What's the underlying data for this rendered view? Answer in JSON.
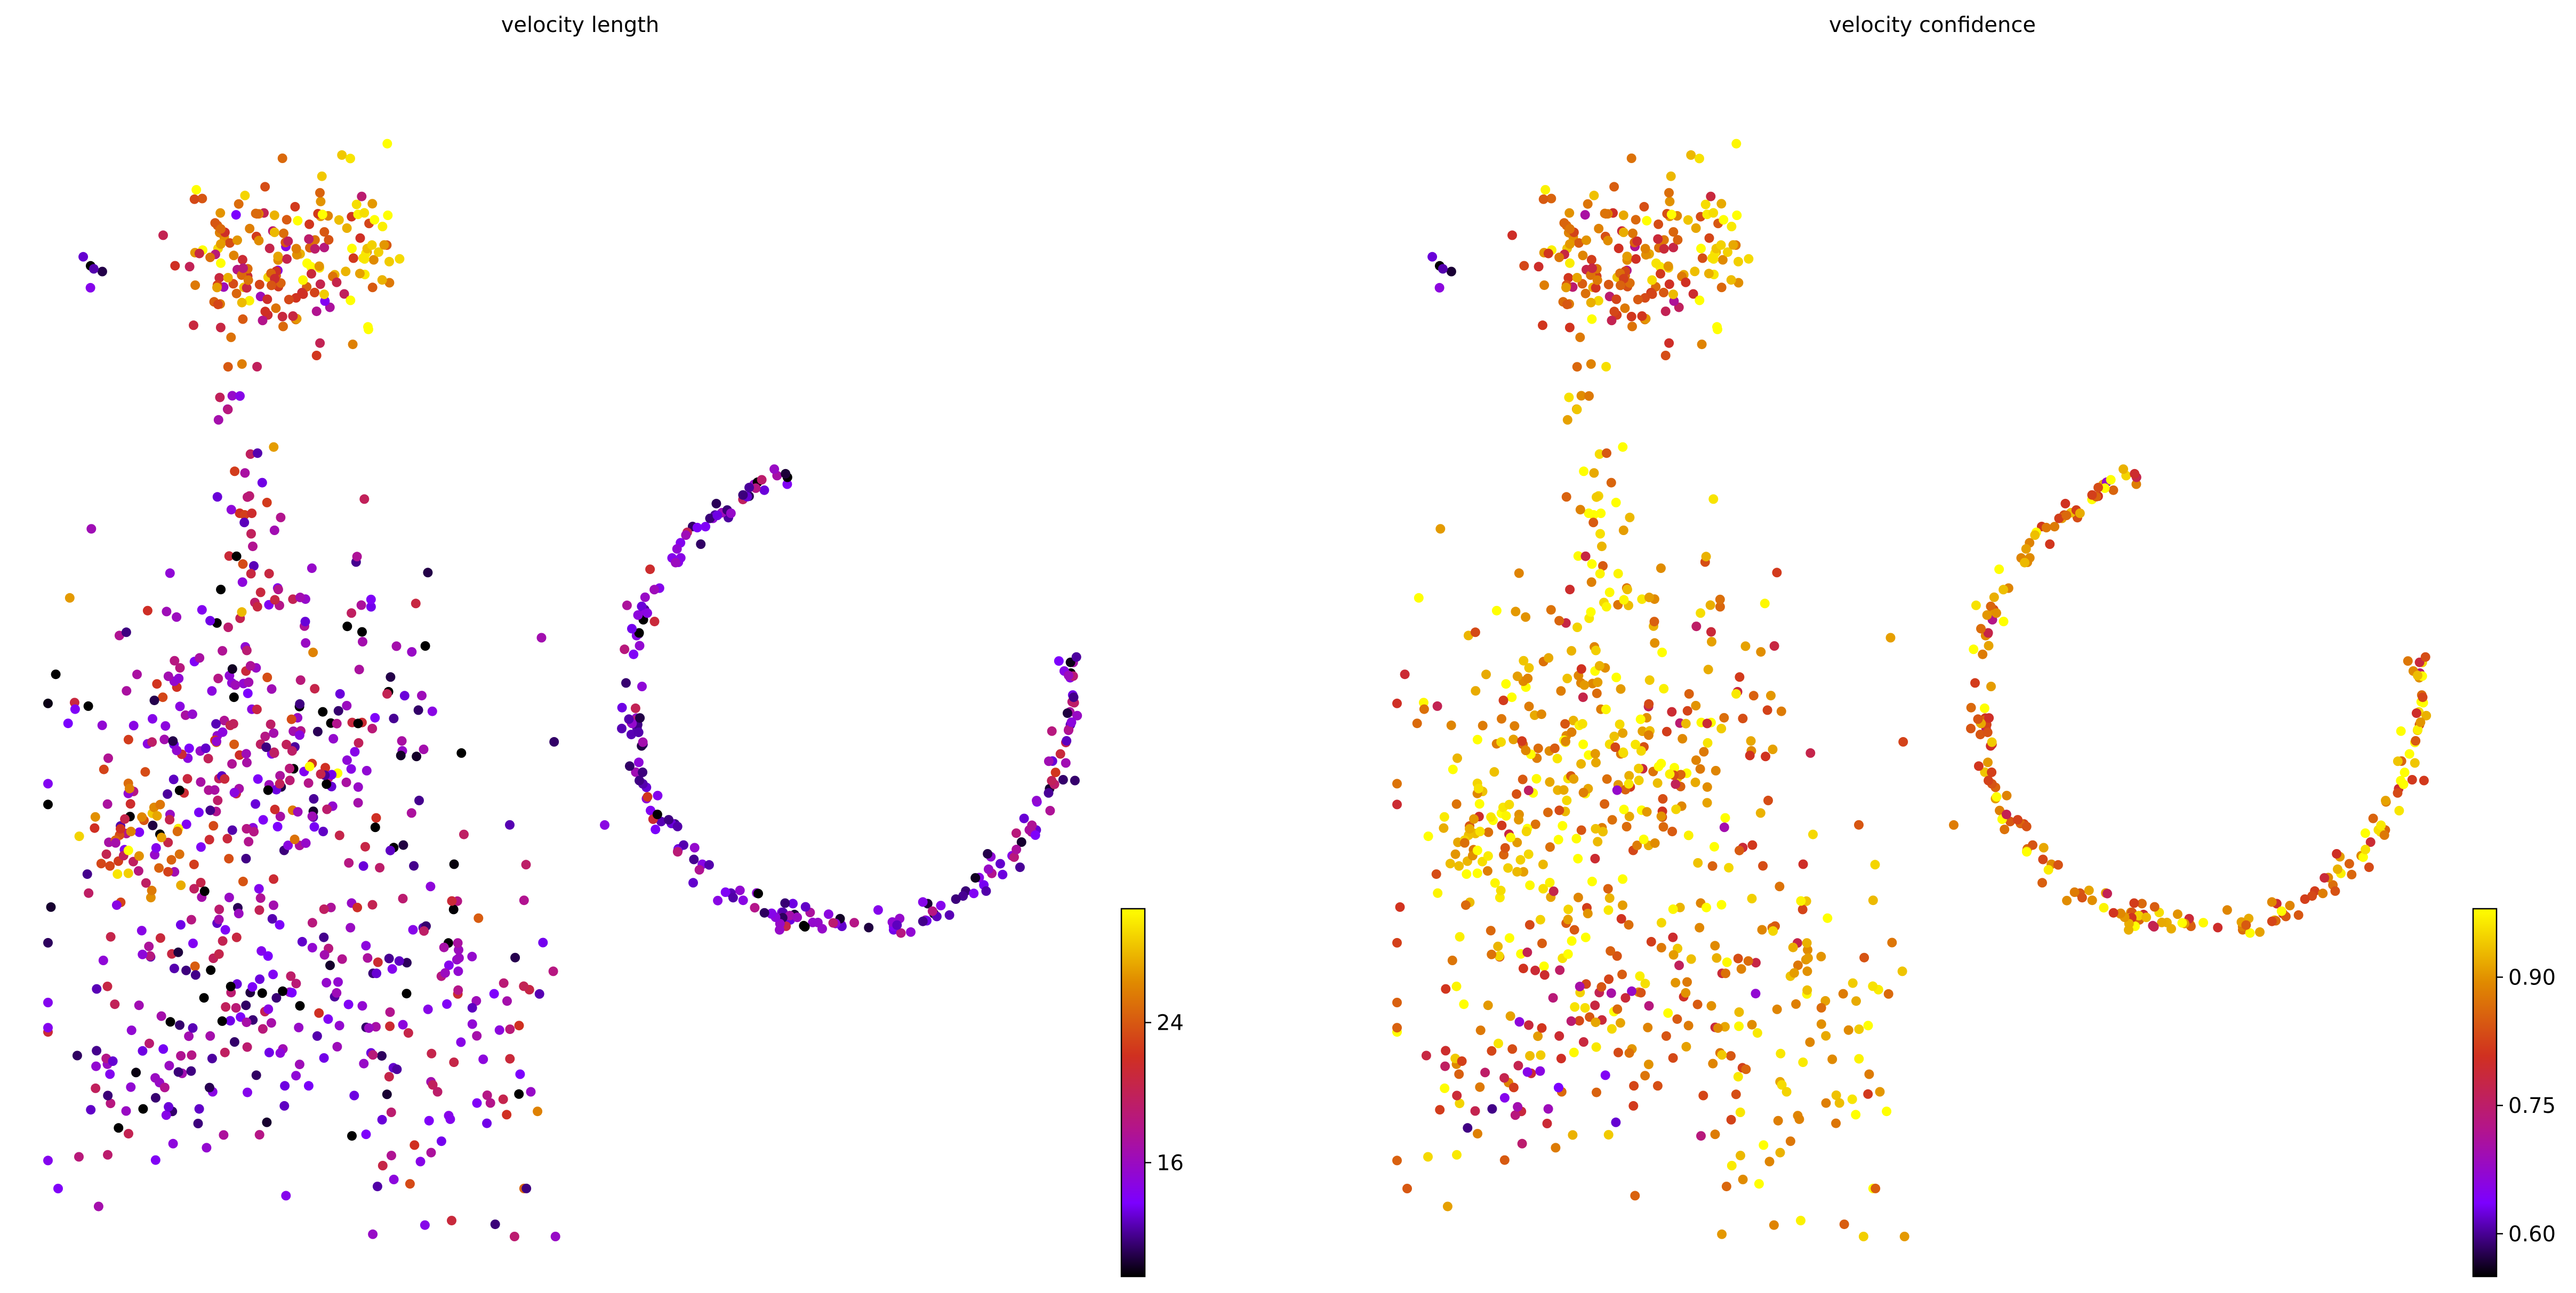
{
  "chart_data": [
    {
      "type": "scatter",
      "title": "velocity length",
      "xlabel": "",
      "ylabel": "",
      "grid": false,
      "axes_visible": false,
      "colormap": "gnuplot",
      "colormap_stops": [
        "#000000",
        "#7c00ff",
        "#b3148c",
        "#d03020",
        "#e08a00",
        "#ffff00"
      ],
      "colorbar": {
        "vmin": 9.5,
        "vmax": 30.5,
        "ticks": [
          16,
          24
        ],
        "tick_labels": [
          "16",
          "24"
        ],
        "placement": "right"
      },
      "clusters": [
        {
          "center": [
            0.21,
            0.15
          ],
          "spread": [
            0.045,
            0.035
          ],
          "n": 150,
          "vmean": 24,
          "vsd": 4
        },
        {
          "center": [
            0.3,
            0.13
          ],
          "spread": [
            0.015,
            0.04
          ],
          "n": 30,
          "vmean": 29,
          "vsd": 2
        },
        {
          "center": [
            0.19,
            0.35
          ],
          "spread": [
            0.02,
            0.07
          ],
          "n": 40,
          "vmean": 18,
          "vsd": 4
        },
        {
          "center": [
            0.05,
            0.16
          ],
          "spread": [
            0.01,
            0.01
          ],
          "n": 5,
          "vmean": 14,
          "vsd": 4
        },
        {
          "center": [
            0.2,
            0.58
          ],
          "spread": [
            0.1,
            0.08
          ],
          "n": 300,
          "vmean": 16,
          "vsd": 4.5
        },
        {
          "center": [
            0.09,
            0.66
          ],
          "spread": [
            0.03,
            0.025
          ],
          "n": 45,
          "vmean": 24,
          "vsd": 4
        },
        {
          "center": [
            0.18,
            0.8
          ],
          "spread": [
            0.1,
            0.06
          ],
          "n": 150,
          "vmean": 15,
          "vsd": 3.5
        },
        {
          "center": [
            0.37,
            0.83
          ],
          "spread": [
            0.05,
            0.08
          ],
          "n": 100,
          "vmean": 17,
          "vsd": 4
        },
        {
          "center": [
            0.12,
            0.87
          ],
          "spread": [
            0.03,
            0.02
          ],
          "n": 20,
          "vmean": 14,
          "vsd": 3
        },
        {
          "center": [
            0.56,
            0.55
          ],
          "spread": [
            0.005,
            0.005
          ],
          "n": 6,
          "vmean": 15,
          "vsd": 3
        }
      ],
      "rings": [
        {
          "center": [
            0.76,
            0.53
          ],
          "radius": [
            0.21,
            0.2
          ],
          "start_deg": -10,
          "end_deg": 255,
          "n": 220,
          "vmean": 14,
          "vsd": 3
        }
      ]
    },
    {
      "type": "scatter",
      "title": "velocity confidence",
      "xlabel": "",
      "ylabel": "",
      "grid": false,
      "axes_visible": false,
      "colormap": "gnuplot",
      "colormap_stops": [
        "#000000",
        "#7c00ff",
        "#b3148c",
        "#d03020",
        "#e08a00",
        "#ffff00"
      ],
      "colorbar": {
        "vmin": 0.55,
        "vmax": 0.98,
        "ticks": [
          0.6,
          0.75,
          0.9
        ],
        "tick_labels": [
          "0.60",
          "0.75",
          "0.90"
        ],
        "placement": "right"
      },
      "clusters": [
        {
          "center": [
            0.21,
            0.15
          ],
          "spread": [
            0.045,
            0.035
          ],
          "n": 150,
          "vmean": 0.86,
          "vsd": 0.06
        },
        {
          "center": [
            0.3,
            0.13
          ],
          "spread": [
            0.015,
            0.04
          ],
          "n": 30,
          "vmean": 0.95,
          "vsd": 0.03
        },
        {
          "center": [
            0.19,
            0.35
          ],
          "spread": [
            0.02,
            0.07
          ],
          "n": 40,
          "vmean": 0.93,
          "vsd": 0.06
        },
        {
          "center": [
            0.05,
            0.16
          ],
          "spread": [
            0.01,
            0.01
          ],
          "n": 5,
          "vmean": 0.65,
          "vsd": 0.1
        },
        {
          "center": [
            0.2,
            0.58
          ],
          "spread": [
            0.1,
            0.08
          ],
          "n": 300,
          "vmean": 0.9,
          "vsd": 0.07
        },
        {
          "center": [
            0.09,
            0.66
          ],
          "spread": [
            0.03,
            0.025
          ],
          "n": 45,
          "vmean": 0.94,
          "vsd": 0.04
        },
        {
          "center": [
            0.18,
            0.8
          ],
          "spread": [
            0.1,
            0.06
          ],
          "n": 150,
          "vmean": 0.87,
          "vsd": 0.08
        },
        {
          "center": [
            0.37,
            0.83
          ],
          "spread": [
            0.05,
            0.08
          ],
          "n": 100,
          "vmean": 0.92,
          "vsd": 0.05
        },
        {
          "center": [
            0.12,
            0.87
          ],
          "spread": [
            0.03,
            0.02
          ],
          "n": 20,
          "vmean": 0.72,
          "vsd": 0.08
        },
        {
          "center": [
            0.56,
            0.55
          ],
          "spread": [
            0.005,
            0.005
          ],
          "n": 6,
          "vmean": 0.8,
          "vsd": 0.05
        }
      ],
      "rings": [
        {
          "center": [
            0.76,
            0.53
          ],
          "radius": [
            0.21,
            0.2
          ],
          "start_deg": -10,
          "end_deg": 255,
          "n": 220,
          "vmean": 0.88,
          "vsd": 0.07
        }
      ]
    }
  ]
}
